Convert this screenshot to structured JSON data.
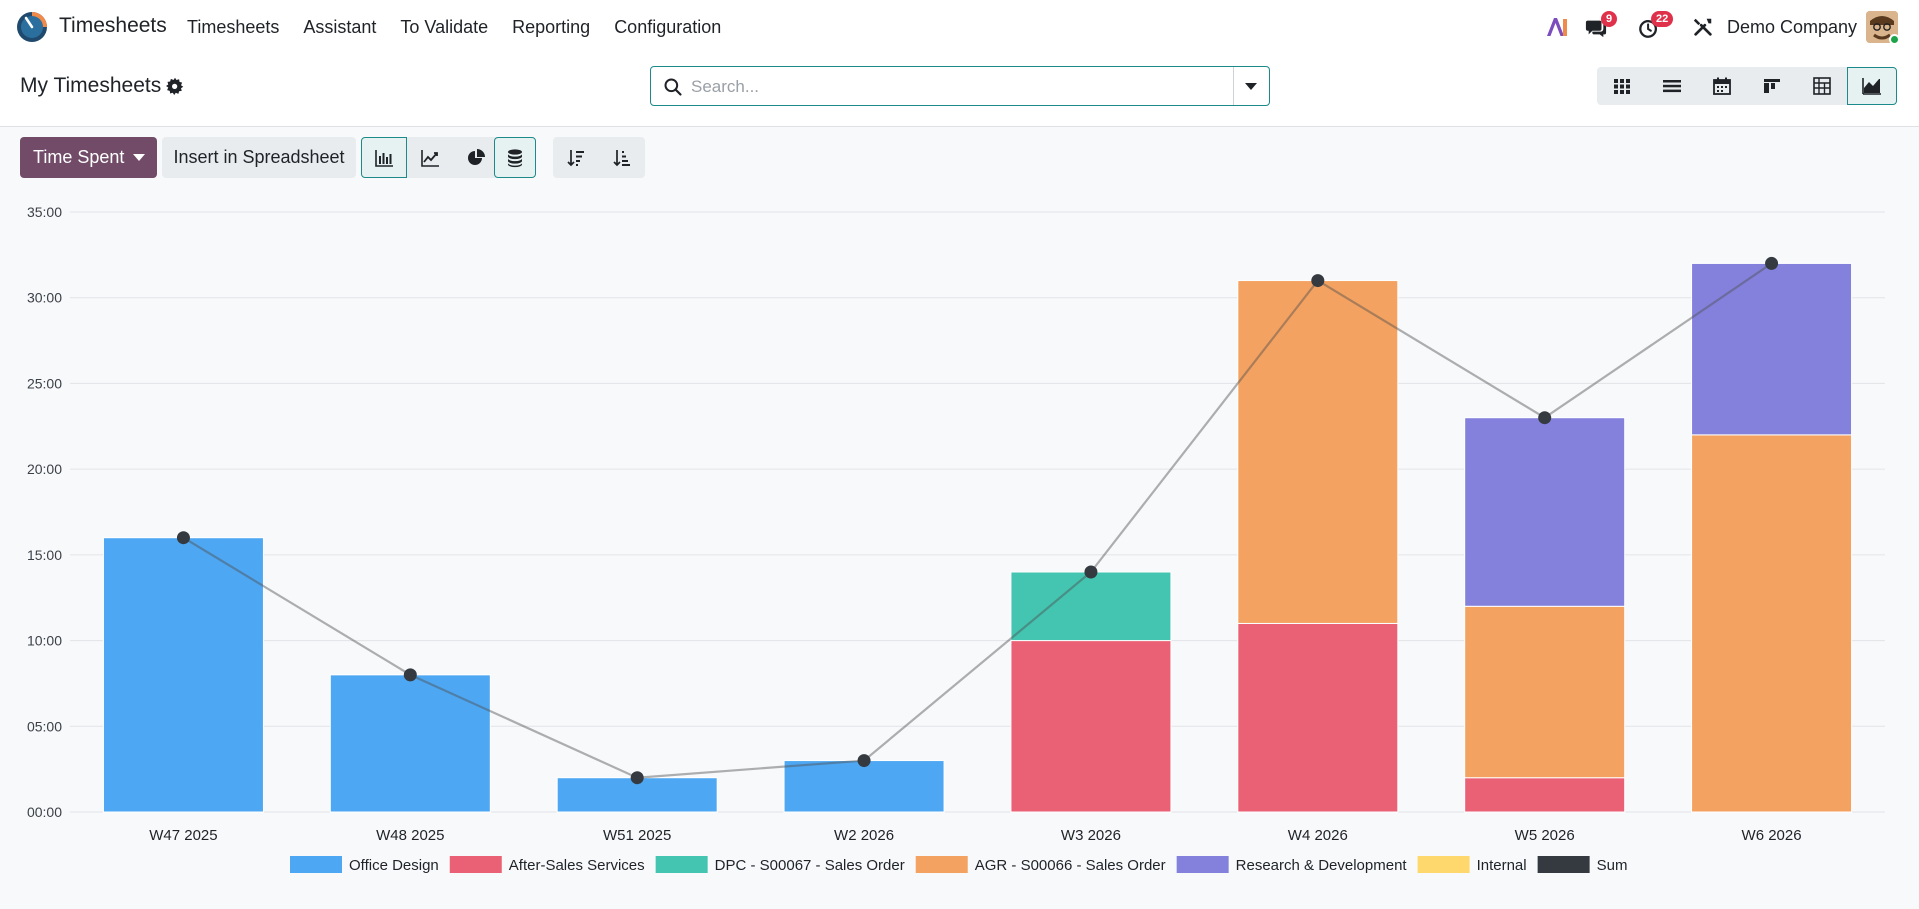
{
  "navbar": {
    "app_name": "Timesheets",
    "menu": [
      "Timesheets",
      "Assistant",
      "To Validate",
      "Reporting",
      "Configuration"
    ],
    "chat_badge": "9",
    "activity_badge": "22",
    "company": "Demo Company"
  },
  "control_panel": {
    "title": "My Timesheets",
    "search_placeholder": "Search..."
  },
  "toolbar": {
    "measure_label": "Time Spent",
    "insert_label": "Insert in Spreadsheet"
  },
  "colors": {
    "accent": "#714b67",
    "teal": "#1d8a8a"
  },
  "chart_data": {
    "type": "bar",
    "stacked": true,
    "categories": [
      "W47 2025",
      "W48 2025",
      "W51 2025",
      "W2 2026",
      "W3 2026",
      "W4 2026",
      "W5 2026",
      "W6 2026"
    ],
    "yticks": [
      "00:00",
      "05:00",
      "10:00",
      "15:00",
      "20:00",
      "25:00",
      "30:00",
      "35:00"
    ],
    "ylim": [
      0,
      35
    ],
    "grid": true,
    "legend_position": "bottom",
    "series": [
      {
        "name": "Office Design",
        "color": "#4ea7f2",
        "values": [
          16,
          8,
          2,
          3,
          0,
          0,
          0,
          0
        ]
      },
      {
        "name": "After-Sales Services",
        "color": "#ea6175",
        "values": [
          0,
          0,
          0,
          0,
          10,
          11,
          2,
          0
        ]
      },
      {
        "name": "DPC - S00067 - Sales Order",
        "color": "#43c5b1",
        "values": [
          0,
          0,
          0,
          0,
          4,
          0,
          0,
          0
        ]
      },
      {
        "name": "AGR - S00066 - Sales Order",
        "color": "#f4a261",
        "values": [
          0,
          0,
          0,
          0,
          0,
          20,
          10,
          22
        ]
      },
      {
        "name": "Research & Development",
        "color": "#8481dd",
        "values": [
          0,
          0,
          0,
          0,
          0,
          0,
          11,
          10
        ]
      },
      {
        "name": "Internal",
        "color": "#ffd86d",
        "values": [
          0,
          0,
          0,
          0,
          0,
          0,
          0,
          0
        ]
      },
      {
        "name": "Sum",
        "color": "#343a40",
        "type": "line",
        "values": [
          16,
          8,
          2,
          3,
          14,
          31,
          23,
          32
        ]
      }
    ]
  }
}
